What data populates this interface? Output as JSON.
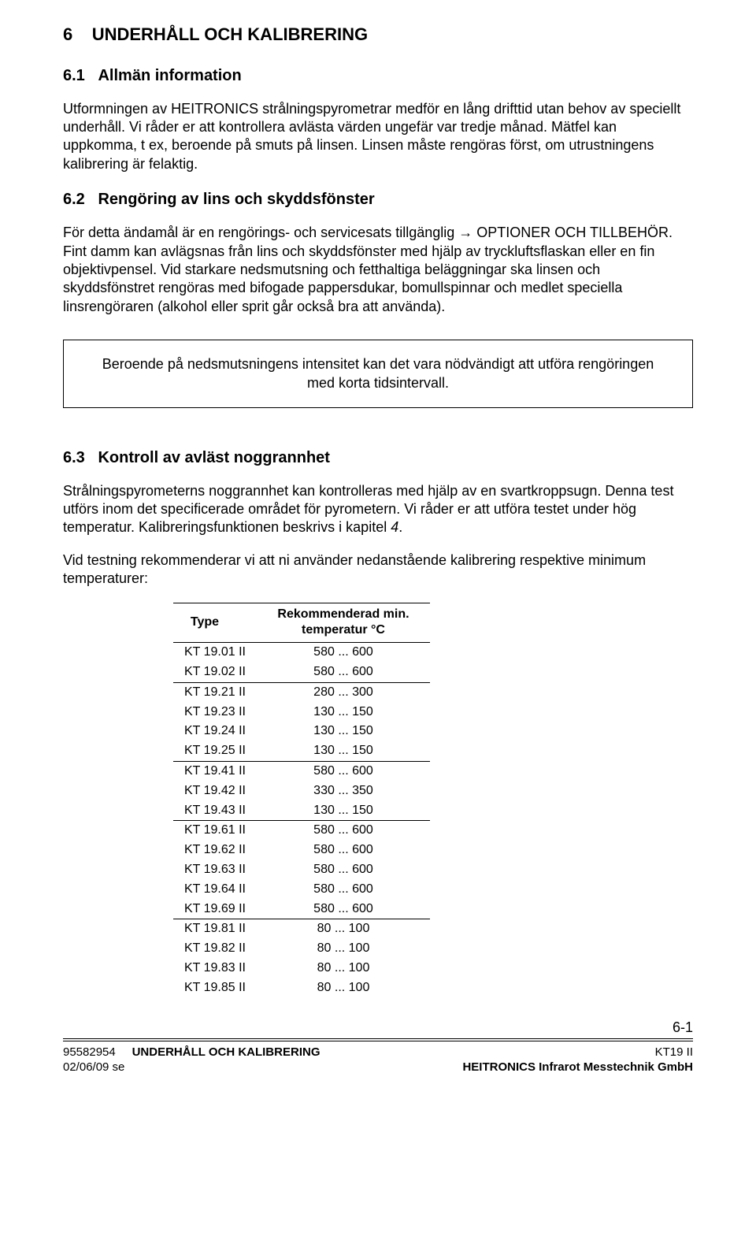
{
  "chapter": {
    "num": "6",
    "title": "UNDERHÅLL OCH KALIBRERING"
  },
  "s1": {
    "num": "6.1",
    "title": "Allmän information",
    "p1": "Utformningen av HEITRONICS strålningspyrometrar medför en lång drifttid utan behov av speciellt underhåll. Vi råder er att kontrollera avlästa värden ungefär var tredje månad. Mätfel kan uppkomma, t ex, beroende på smuts på linsen. Linsen måste rengöras först, om utrustningens kalibrering är felaktig."
  },
  "s2": {
    "num": "6.2",
    "title": "Rengöring av lins och skyddsfönster",
    "p1": "För detta ändamål är en rengörings- och servicesats tillgänglig → OPTIONER OCH TILLBEHÖR. Fint damm kan avlägsnas från lins och skyddsfönster med hjälp av tryckluftsflaskan eller en fin objektivpensel. Vid starkare nedsmutsning och fetthaltiga beläggningar ska linsen och skyddsfönstret rengöras med bifogade pappersdukar, bomullspinnar och medlet speciella linsrengöraren (alkohol eller sprit går också bra att använda).",
    "note": "Beroende på nedsmutsningens intensitet kan det vara nödvändigt att utföra rengöringen med korta tidsintervall."
  },
  "s3": {
    "num": "6.3",
    "title": "Kontroll av avläst noggrannhet",
    "p1_a": "Strålningspyrometerns noggrannhet kan kontrolleras med hjälp av en svartkroppsugn. Denna test utförs inom det specificerade området för pyrometern. Vi råder er att utföra testet under hög temperatur. Kalibreringsfunktionen beskrivs i kapitel ",
    "p1_it": "4",
    "p1_b": ".",
    "p2": "Vid testning rekommenderar vi att ni använder nedanstående kalibrering respektive minimum temperaturer:"
  },
  "table": {
    "hdr_type": "Type",
    "hdr_temp": "Rekommenderad min. temperatur °C",
    "groups": [
      [
        {
          "type": "KT 19.01 II",
          "temp": "580 ... 600"
        },
        {
          "type": "KT 19.02 II",
          "temp": "580 ... 600"
        }
      ],
      [
        {
          "type": "KT 19.21 II",
          "temp": "280 ... 300"
        },
        {
          "type": "KT 19.23 II",
          "temp": "130 ... 150"
        },
        {
          "type": "KT 19.24 II",
          "temp": "130 ... 150"
        },
        {
          "type": "KT 19.25 II",
          "temp": "130 ... 150"
        }
      ],
      [
        {
          "type": "KT 19.41 II",
          "temp": "580 ... 600"
        },
        {
          "type": "KT 19.42 II",
          "temp": "330 ... 350"
        },
        {
          "type": "KT 19.43 II",
          "temp": "130 ... 150"
        }
      ],
      [
        {
          "type": "KT 19.61 II",
          "temp": "580 ... 600"
        },
        {
          "type": "KT 19.62 II",
          "temp": "580 ... 600"
        },
        {
          "type": "KT 19.63 II",
          "temp": "580 ... 600"
        },
        {
          "type": "KT 19.64 II",
          "temp": "580 ... 600"
        },
        {
          "type": "KT 19.69 II",
          "temp": "580 ... 600"
        }
      ],
      [
        {
          "type": "KT 19.81 II",
          "temp": "80 ... 100"
        },
        {
          "type": "KT 19.82 II",
          "temp": "80 ... 100"
        },
        {
          "type": "KT 19.83 II",
          "temp": "80 ... 100"
        },
        {
          "type": "KT 19.85 II",
          "temp": "80 ... 100"
        }
      ]
    ]
  },
  "footer": {
    "pagenum": "6-1",
    "docnum": "95582954",
    "docdate": "02/06/09 se",
    "center": "UNDERHÅLL OCH KALIBRERING",
    "right1": "KT19 II",
    "right2": "HEITRONICS Infrarot Messtechnik GmbH"
  }
}
